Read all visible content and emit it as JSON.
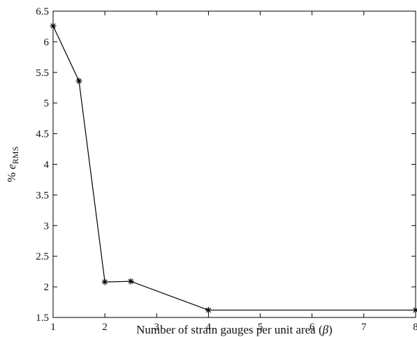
{
  "chart_data": {
    "type": "line",
    "xlabel": "Number of strain gauges per unit area (",
    "xlabel_symbol": "β",
    "xlabel_close": ")",
    "ylabel_prefix": "% ",
    "ylabel_var": "e",
    "ylabel_sub": "RMS",
    "xlim": [
      1,
      8
    ],
    "ylim": [
      1.5,
      6.5
    ],
    "xticks": [
      "1",
      "2",
      "3",
      "4",
      "5",
      "6",
      "7",
      "8"
    ],
    "yticks": [
      "1.5",
      "2",
      "2.5",
      "3",
      "3.5",
      "4",
      "4.5",
      "5",
      "5.5",
      "6",
      "6.5"
    ],
    "marker": "asterisk",
    "line_color": "#000000",
    "grid": false,
    "series": [
      {
        "x": [
          1,
          1.5,
          2,
          2.5,
          4,
          8
        ],
        "y": [
          6.26,
          5.36,
          2.08,
          2.09,
          1.62,
          1.62
        ]
      }
    ]
  }
}
